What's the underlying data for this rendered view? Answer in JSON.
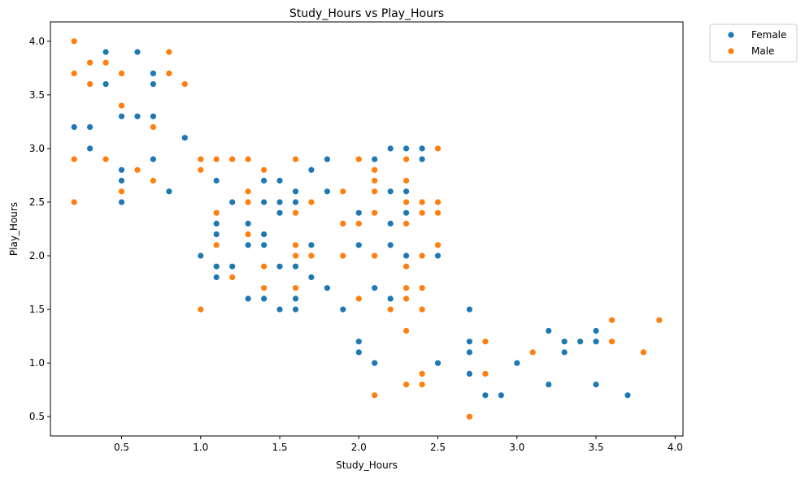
{
  "chart_data": {
    "type": "scatter",
    "title": "Study_Hours vs Play_Hours",
    "xlabel": "Study_Hours",
    "ylabel": "Play_Hours",
    "xlim": [
      0.05,
      4.05
    ],
    "ylim": [
      0.32,
      4.18
    ],
    "xticks": [
      "0.5",
      "1.0",
      "1.5",
      "2.0",
      "2.5",
      "3.0",
      "3.5",
      "4.0"
    ],
    "yticks": [
      "0.5",
      "1.0",
      "1.5",
      "2.0",
      "2.5",
      "3.0",
      "3.5",
      "4.0"
    ],
    "grid": false,
    "legend_position": "outside-top-right",
    "series": [
      {
        "name": "Female",
        "color": "#1f77b4",
        "points": [
          [
            0.2,
            3.2
          ],
          [
            0.3,
            3.2
          ],
          [
            0.3,
            3.0
          ],
          [
            0.4,
            3.9
          ],
          [
            0.4,
            3.6
          ],
          [
            0.5,
            3.3
          ],
          [
            0.5,
            2.8
          ],
          [
            0.5,
            2.7
          ],
          [
            0.5,
            2.5
          ],
          [
            0.6,
            3.9
          ],
          [
            0.6,
            3.3
          ],
          [
            0.7,
            3.7
          ],
          [
            0.7,
            3.6
          ],
          [
            0.7,
            3.3
          ],
          [
            0.7,
            2.9
          ],
          [
            0.8,
            2.6
          ],
          [
            0.9,
            3.1
          ],
          [
            1.0,
            2.0
          ],
          [
            1.1,
            2.7
          ],
          [
            1.1,
            2.3
          ],
          [
            1.1,
            2.2
          ],
          [
            1.1,
            1.9
          ],
          [
            1.1,
            1.8
          ],
          [
            1.2,
            2.5
          ],
          [
            1.2,
            1.9
          ],
          [
            1.3,
            2.3
          ],
          [
            1.3,
            2.1
          ],
          [
            1.3,
            1.6
          ],
          [
            1.4,
            2.7
          ],
          [
            1.4,
            2.5
          ],
          [
            1.4,
            2.2
          ],
          [
            1.4,
            2.1
          ],
          [
            1.4,
            1.6
          ],
          [
            1.5,
            2.7
          ],
          [
            1.5,
            2.5
          ],
          [
            1.5,
            2.4
          ],
          [
            1.5,
            1.9
          ],
          [
            1.5,
            1.5
          ],
          [
            1.6,
            2.6
          ],
          [
            1.6,
            2.5
          ],
          [
            1.6,
            1.9
          ],
          [
            1.6,
            1.6
          ],
          [
            1.6,
            1.5
          ],
          [
            1.7,
            2.8
          ],
          [
            1.7,
            2.1
          ],
          [
            1.7,
            1.8
          ],
          [
            1.8,
            2.9
          ],
          [
            1.8,
            2.6
          ],
          [
            1.8,
            1.7
          ],
          [
            1.9,
            1.5
          ],
          [
            2.0,
            2.4
          ],
          [
            2.0,
            2.1
          ],
          [
            2.0,
            1.2
          ],
          [
            2.0,
            1.1
          ],
          [
            2.1,
            2.9
          ],
          [
            2.1,
            1.7
          ],
          [
            2.1,
            1.0
          ],
          [
            2.2,
            3.0
          ],
          [
            2.2,
            2.6
          ],
          [
            2.2,
            2.3
          ],
          [
            2.2,
            2.1
          ],
          [
            2.2,
            1.6
          ],
          [
            2.3,
            3.0
          ],
          [
            2.3,
            2.6
          ],
          [
            2.3,
            2.4
          ],
          [
            2.3,
            2.0
          ],
          [
            2.4,
            3.0
          ],
          [
            2.4,
            2.9
          ],
          [
            2.5,
            2.0
          ],
          [
            2.5,
            1.0
          ],
          [
            2.7,
            1.5
          ],
          [
            2.7,
            1.2
          ],
          [
            2.7,
            1.1
          ],
          [
            2.7,
            0.9
          ],
          [
            2.8,
            0.7
          ],
          [
            2.9,
            0.7
          ],
          [
            3.0,
            1.0
          ],
          [
            3.2,
            1.3
          ],
          [
            3.2,
            0.8
          ],
          [
            3.3,
            1.2
          ],
          [
            3.3,
            1.1
          ],
          [
            3.4,
            1.2
          ],
          [
            3.5,
            1.3
          ],
          [
            3.5,
            1.2
          ],
          [
            3.5,
            0.8
          ],
          [
            3.7,
            0.7
          ]
        ]
      },
      {
        "name": "Male",
        "color": "#ff7f0e",
        "points": [
          [
            0.2,
            4.0
          ],
          [
            0.2,
            3.7
          ],
          [
            0.2,
            2.9
          ],
          [
            0.2,
            2.5
          ],
          [
            0.3,
            3.8
          ],
          [
            0.3,
            3.6
          ],
          [
            0.4,
            3.8
          ],
          [
            0.4,
            2.9
          ],
          [
            0.5,
            3.7
          ],
          [
            0.5,
            3.4
          ],
          [
            0.5,
            2.6
          ],
          [
            0.6,
            2.8
          ],
          [
            0.7,
            3.2
          ],
          [
            0.7,
            2.7
          ],
          [
            0.8,
            3.9
          ],
          [
            0.8,
            3.7
          ],
          [
            0.9,
            3.6
          ],
          [
            1.0,
            2.9
          ],
          [
            1.0,
            2.8
          ],
          [
            1.0,
            1.5
          ],
          [
            1.1,
            2.9
          ],
          [
            1.1,
            2.4
          ],
          [
            1.1,
            2.1
          ],
          [
            1.2,
            2.9
          ],
          [
            1.2,
            1.8
          ],
          [
            1.3,
            2.9
          ],
          [
            1.3,
            2.6
          ],
          [
            1.3,
            2.5
          ],
          [
            1.3,
            2.2
          ],
          [
            1.4,
            2.8
          ],
          [
            1.4,
            1.9
          ],
          [
            1.4,
            1.7
          ],
          [
            1.6,
            2.9
          ],
          [
            1.6,
            2.4
          ],
          [
            1.6,
            2.1
          ],
          [
            1.6,
            2.0
          ],
          [
            1.6,
            1.7
          ],
          [
            1.7,
            2.5
          ],
          [
            1.7,
            2.0
          ],
          [
            1.9,
            2.6
          ],
          [
            1.9,
            2.3
          ],
          [
            1.9,
            2.0
          ],
          [
            2.0,
            2.9
          ],
          [
            2.0,
            2.3
          ],
          [
            2.0,
            1.6
          ],
          [
            2.1,
            2.8
          ],
          [
            2.1,
            2.7
          ],
          [
            2.1,
            2.6
          ],
          [
            2.1,
            2.4
          ],
          [
            2.1,
            2.0
          ],
          [
            2.1,
            0.7
          ],
          [
            2.2,
            1.5
          ],
          [
            2.3,
            2.9
          ],
          [
            2.3,
            2.7
          ],
          [
            2.3,
            2.5
          ],
          [
            2.3,
            2.3
          ],
          [
            2.3,
            1.9
          ],
          [
            2.3,
            1.7
          ],
          [
            2.3,
            1.6
          ],
          [
            2.3,
            1.3
          ],
          [
            2.3,
            0.8
          ],
          [
            2.4,
            2.5
          ],
          [
            2.4,
            2.4
          ],
          [
            2.4,
            2.0
          ],
          [
            2.4,
            1.7
          ],
          [
            2.4,
            1.5
          ],
          [
            2.4,
            0.9
          ],
          [
            2.4,
            0.8
          ],
          [
            2.5,
            3.0
          ],
          [
            2.5,
            2.5
          ],
          [
            2.5,
            2.4
          ],
          [
            2.5,
            2.1
          ],
          [
            2.7,
            0.5
          ],
          [
            2.8,
            1.2
          ],
          [
            2.8,
            0.9
          ],
          [
            3.1,
            1.1
          ],
          [
            3.6,
            1.4
          ],
          [
            3.6,
            1.2
          ],
          [
            3.8,
            1.1
          ],
          [
            3.9,
            1.4
          ]
        ]
      }
    ]
  }
}
